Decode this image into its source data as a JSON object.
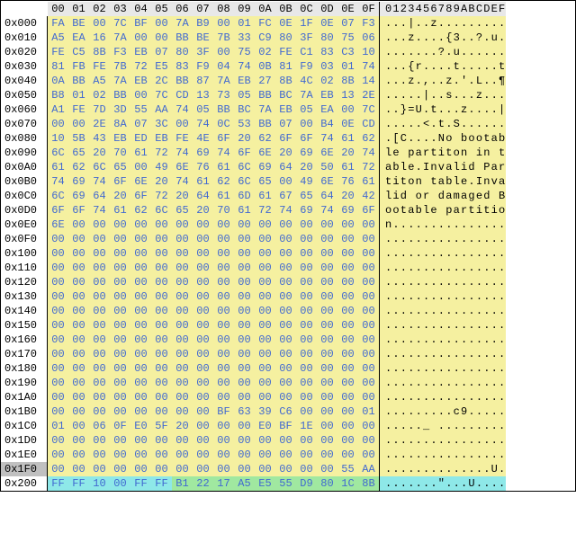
{
  "colors": {
    "hexText": "#4169d1",
    "bgYellow": "#f5f0a0",
    "bgGreen": "#a0e8a0",
    "bgCyan": "#8ee8e8",
    "border": "#000000",
    "selectedOffset": "#c0c0c0",
    "headerBg": "#e8e8e8"
  },
  "selectedRow": 31,
  "header": {
    "offsetBlank": "",
    "cols": [
      "00",
      "01",
      "02",
      "03",
      "04",
      "05",
      "06",
      "07",
      "08",
      "09",
      "0A",
      "0B",
      "0C",
      "0D",
      "0E",
      "0F"
    ],
    "asciiHdr": "0123456789ABCDEF"
  },
  "rows": [
    {
      "off": "0x000",
      "hex": [
        "FA",
        "BE",
        "00",
        "7C",
        "BF",
        "00",
        "7A",
        "B9",
        "00",
        "01",
        "FC",
        "0E",
        "1F",
        "0E",
        "07",
        "F3"
      ],
      "ascii": "...|..z.........",
      "seg": [
        "y",
        "y",
        "y",
        "y",
        "y",
        "y",
        "y",
        "y",
        "y",
        "y",
        "y",
        "y",
        "y",
        "y",
        "y",
        "y"
      ],
      "aseg": "y"
    },
    {
      "off": "0x010",
      "hex": [
        "A5",
        "EA",
        "16",
        "7A",
        "00",
        "00",
        "BB",
        "BE",
        "7B",
        "33",
        "C9",
        "80",
        "3F",
        "80",
        "75",
        "06"
      ],
      "ascii": "...z....{3..?.u.",
      "seg": [
        "y",
        "y",
        "y",
        "y",
        "y",
        "y",
        "y",
        "y",
        "y",
        "y",
        "y",
        "y",
        "y",
        "y",
        "y",
        "y"
      ],
      "aseg": "y"
    },
    {
      "off": "0x020",
      "hex": [
        "FE",
        "C5",
        "8B",
        "F3",
        "EB",
        "07",
        "80",
        "3F",
        "00",
        "75",
        "02",
        "FE",
        "C1",
        "83",
        "C3",
        "10"
      ],
      "ascii": ".......?.u......",
      "seg": [
        "y",
        "y",
        "y",
        "y",
        "y",
        "y",
        "y",
        "y",
        "y",
        "y",
        "y",
        "y",
        "y",
        "y",
        "y",
        "y"
      ],
      "aseg": "y"
    },
    {
      "off": "0x030",
      "hex": [
        "81",
        "FB",
        "FE",
        "7B",
        "72",
        "E5",
        "83",
        "F9",
        "04",
        "74",
        "0B",
        "81",
        "F9",
        "03",
        "01",
        "74"
      ],
      "ascii": "...{r....t.....t",
      "seg": [
        "y",
        "y",
        "y",
        "y",
        "y",
        "y",
        "y",
        "y",
        "y",
        "y",
        "y",
        "y",
        "y",
        "y",
        "y",
        "y"
      ],
      "aseg": "y"
    },
    {
      "off": "0x040",
      "hex": [
        "0A",
        "BB",
        "A5",
        "7A",
        "EB",
        "2C",
        "BB",
        "87",
        "7A",
        "EB",
        "27",
        "8B",
        "4C",
        "02",
        "8B",
        "14"
      ],
      "ascii": "...z.,..z.'.L..¶",
      "seg": [
        "y",
        "y",
        "y",
        "y",
        "y",
        "y",
        "y",
        "y",
        "y",
        "y",
        "y",
        "y",
        "y",
        "y",
        "y",
        "y"
      ],
      "aseg": "y"
    },
    {
      "off": "0x050",
      "hex": [
        "B8",
        "01",
        "02",
        "BB",
        "00",
        "7C",
        "CD",
        "13",
        "73",
        "05",
        "BB",
        "BC",
        "7A",
        "EB",
        "13",
        "2E"
      ],
      "ascii": ".....|..s...z...",
      "seg": [
        "y",
        "y",
        "y",
        "y",
        "y",
        "y",
        "y",
        "y",
        "y",
        "y",
        "y",
        "y",
        "y",
        "y",
        "y",
        "y"
      ],
      "aseg": "y"
    },
    {
      "off": "0x060",
      "hex": [
        "A1",
        "FE",
        "7D",
        "3D",
        "55",
        "AA",
        "74",
        "05",
        "BB",
        "BC",
        "7A",
        "EB",
        "05",
        "EA",
        "00",
        "7C"
      ],
      "ascii": "..}=U.t...z....|",
      "seg": [
        "y",
        "y",
        "y",
        "y",
        "y",
        "y",
        "y",
        "y",
        "y",
        "y",
        "y",
        "y",
        "y",
        "y",
        "y",
        "y"
      ],
      "aseg": "y"
    },
    {
      "off": "0x070",
      "hex": [
        "00",
        "00",
        "2E",
        "8A",
        "07",
        "3C",
        "00",
        "74",
        "0C",
        "53",
        "BB",
        "07",
        "00",
        "B4",
        "0E",
        "CD"
      ],
      "ascii": ".....<.t.S......",
      "seg": [
        "y",
        "y",
        "y",
        "y",
        "y",
        "y",
        "y",
        "y",
        "y",
        "y",
        "y",
        "y",
        "y",
        "y",
        "y",
        "y"
      ],
      "aseg": "y"
    },
    {
      "off": "0x080",
      "hex": [
        "10",
        "5B",
        "43",
        "EB",
        "ED",
        "EB",
        "FE",
        "4E",
        "6F",
        "20",
        "62",
        "6F",
        "6F",
        "74",
        "61",
        "62"
      ],
      "ascii": ".[C....No bootab",
      "seg": [
        "y",
        "y",
        "y",
        "y",
        "y",
        "y",
        "y",
        "y",
        "y",
        "y",
        "y",
        "y",
        "y",
        "y",
        "y",
        "y"
      ],
      "aseg": "y"
    },
    {
      "off": "0x090",
      "hex": [
        "6C",
        "65",
        "20",
        "70",
        "61",
        "72",
        "74",
        "69",
        "74",
        "6F",
        "6E",
        "20",
        "69",
        "6E",
        "20",
        "74"
      ],
      "ascii": "le partiton in t",
      "seg": [
        "y",
        "y",
        "y",
        "y",
        "y",
        "y",
        "y",
        "y",
        "y",
        "y",
        "y",
        "y",
        "y",
        "y",
        "y",
        "y"
      ],
      "aseg": "y"
    },
    {
      "off": "0x0A0",
      "hex": [
        "61",
        "62",
        "6C",
        "65",
        "00",
        "49",
        "6E",
        "76",
        "61",
        "6C",
        "69",
        "64",
        "20",
        "50",
        "61",
        "72"
      ],
      "ascii": "able.Invalid Par",
      "seg": [
        "y",
        "y",
        "y",
        "y",
        "y",
        "y",
        "y",
        "y",
        "y",
        "y",
        "y",
        "y",
        "y",
        "y",
        "y",
        "y"
      ],
      "aseg": "y"
    },
    {
      "off": "0x0B0",
      "hex": [
        "74",
        "69",
        "74",
        "6F",
        "6E",
        "20",
        "74",
        "61",
        "62",
        "6C",
        "65",
        "00",
        "49",
        "6E",
        "76",
        "61"
      ],
      "ascii": "titon table.Inva",
      "seg": [
        "y",
        "y",
        "y",
        "y",
        "y",
        "y",
        "y",
        "y",
        "y",
        "y",
        "y",
        "y",
        "y",
        "y",
        "y",
        "y"
      ],
      "aseg": "y"
    },
    {
      "off": "0x0C0",
      "hex": [
        "6C",
        "69",
        "64",
        "20",
        "6F",
        "72",
        "20",
        "64",
        "61",
        "6D",
        "61",
        "67",
        "65",
        "64",
        "20",
        "42"
      ],
      "ascii": "lid or damaged B",
      "seg": [
        "y",
        "y",
        "y",
        "y",
        "y",
        "y",
        "y",
        "y",
        "y",
        "y",
        "y",
        "y",
        "y",
        "y",
        "y",
        "y"
      ],
      "aseg": "y"
    },
    {
      "off": "0x0D0",
      "hex": [
        "6F",
        "6F",
        "74",
        "61",
        "62",
        "6C",
        "65",
        "20",
        "70",
        "61",
        "72",
        "74",
        "69",
        "74",
        "69",
        "6F"
      ],
      "ascii": "ootable partitio",
      "seg": [
        "y",
        "y",
        "y",
        "y",
        "y",
        "y",
        "y",
        "y",
        "y",
        "y",
        "y",
        "y",
        "y",
        "y",
        "y",
        "y"
      ],
      "aseg": "y"
    },
    {
      "off": "0x0E0",
      "hex": [
        "6E",
        "00",
        "00",
        "00",
        "00",
        "00",
        "00",
        "00",
        "00",
        "00",
        "00",
        "00",
        "00",
        "00",
        "00",
        "00"
      ],
      "ascii": "n...............",
      "seg": [
        "y",
        "y",
        "y",
        "y",
        "y",
        "y",
        "y",
        "y",
        "y",
        "y",
        "y",
        "y",
        "y",
        "y",
        "y",
        "y"
      ],
      "aseg": "y"
    },
    {
      "off": "0x0F0",
      "hex": [
        "00",
        "00",
        "00",
        "00",
        "00",
        "00",
        "00",
        "00",
        "00",
        "00",
        "00",
        "00",
        "00",
        "00",
        "00",
        "00"
      ],
      "ascii": "................",
      "seg": [
        "y",
        "y",
        "y",
        "y",
        "y",
        "y",
        "y",
        "y",
        "y",
        "y",
        "y",
        "y",
        "y",
        "y",
        "y",
        "y"
      ],
      "aseg": "y"
    },
    {
      "off": "0x100",
      "hex": [
        "00",
        "00",
        "00",
        "00",
        "00",
        "00",
        "00",
        "00",
        "00",
        "00",
        "00",
        "00",
        "00",
        "00",
        "00",
        "00"
      ],
      "ascii": "................",
      "seg": [
        "y",
        "y",
        "y",
        "y",
        "y",
        "y",
        "y",
        "y",
        "y",
        "y",
        "y",
        "y",
        "y",
        "y",
        "y",
        "y"
      ],
      "aseg": "y"
    },
    {
      "off": "0x110",
      "hex": [
        "00",
        "00",
        "00",
        "00",
        "00",
        "00",
        "00",
        "00",
        "00",
        "00",
        "00",
        "00",
        "00",
        "00",
        "00",
        "00"
      ],
      "ascii": "................",
      "seg": [
        "y",
        "y",
        "y",
        "y",
        "y",
        "y",
        "y",
        "y",
        "y",
        "y",
        "y",
        "y",
        "y",
        "y",
        "y",
        "y"
      ],
      "aseg": "y"
    },
    {
      "off": "0x120",
      "hex": [
        "00",
        "00",
        "00",
        "00",
        "00",
        "00",
        "00",
        "00",
        "00",
        "00",
        "00",
        "00",
        "00",
        "00",
        "00",
        "00"
      ],
      "ascii": "................",
      "seg": [
        "y",
        "y",
        "y",
        "y",
        "y",
        "y",
        "y",
        "y",
        "y",
        "y",
        "y",
        "y",
        "y",
        "y",
        "y",
        "y"
      ],
      "aseg": "y"
    },
    {
      "off": "0x130",
      "hex": [
        "00",
        "00",
        "00",
        "00",
        "00",
        "00",
        "00",
        "00",
        "00",
        "00",
        "00",
        "00",
        "00",
        "00",
        "00",
        "00"
      ],
      "ascii": "................",
      "seg": [
        "y",
        "y",
        "y",
        "y",
        "y",
        "y",
        "y",
        "y",
        "y",
        "y",
        "y",
        "y",
        "y",
        "y",
        "y",
        "y"
      ],
      "aseg": "y"
    },
    {
      "off": "0x140",
      "hex": [
        "00",
        "00",
        "00",
        "00",
        "00",
        "00",
        "00",
        "00",
        "00",
        "00",
        "00",
        "00",
        "00",
        "00",
        "00",
        "00"
      ],
      "ascii": "................",
      "seg": [
        "y",
        "y",
        "y",
        "y",
        "y",
        "y",
        "y",
        "y",
        "y",
        "y",
        "y",
        "y",
        "y",
        "y",
        "y",
        "y"
      ],
      "aseg": "y"
    },
    {
      "off": "0x150",
      "hex": [
        "00",
        "00",
        "00",
        "00",
        "00",
        "00",
        "00",
        "00",
        "00",
        "00",
        "00",
        "00",
        "00",
        "00",
        "00",
        "00"
      ],
      "ascii": "................",
      "seg": [
        "y",
        "y",
        "y",
        "y",
        "y",
        "y",
        "y",
        "y",
        "y",
        "y",
        "y",
        "y",
        "y",
        "y",
        "y",
        "y"
      ],
      "aseg": "y"
    },
    {
      "off": "0x160",
      "hex": [
        "00",
        "00",
        "00",
        "00",
        "00",
        "00",
        "00",
        "00",
        "00",
        "00",
        "00",
        "00",
        "00",
        "00",
        "00",
        "00"
      ],
      "ascii": "................",
      "seg": [
        "y",
        "y",
        "y",
        "y",
        "y",
        "y",
        "y",
        "y",
        "y",
        "y",
        "y",
        "y",
        "y",
        "y",
        "y",
        "y"
      ],
      "aseg": "y"
    },
    {
      "off": "0x170",
      "hex": [
        "00",
        "00",
        "00",
        "00",
        "00",
        "00",
        "00",
        "00",
        "00",
        "00",
        "00",
        "00",
        "00",
        "00",
        "00",
        "00"
      ],
      "ascii": "................",
      "seg": [
        "y",
        "y",
        "y",
        "y",
        "y",
        "y",
        "y",
        "y",
        "y",
        "y",
        "y",
        "y",
        "y",
        "y",
        "y",
        "y"
      ],
      "aseg": "y"
    },
    {
      "off": "0x180",
      "hex": [
        "00",
        "00",
        "00",
        "00",
        "00",
        "00",
        "00",
        "00",
        "00",
        "00",
        "00",
        "00",
        "00",
        "00",
        "00",
        "00"
      ],
      "ascii": "................",
      "seg": [
        "y",
        "y",
        "y",
        "y",
        "y",
        "y",
        "y",
        "y",
        "y",
        "y",
        "y",
        "y",
        "y",
        "y",
        "y",
        "y"
      ],
      "aseg": "y"
    },
    {
      "off": "0x190",
      "hex": [
        "00",
        "00",
        "00",
        "00",
        "00",
        "00",
        "00",
        "00",
        "00",
        "00",
        "00",
        "00",
        "00",
        "00",
        "00",
        "00"
      ],
      "ascii": "................",
      "seg": [
        "y",
        "y",
        "y",
        "y",
        "y",
        "y",
        "y",
        "y",
        "y",
        "y",
        "y",
        "y",
        "y",
        "y",
        "y",
        "y"
      ],
      "aseg": "y"
    },
    {
      "off": "0x1A0",
      "hex": [
        "00",
        "00",
        "00",
        "00",
        "00",
        "00",
        "00",
        "00",
        "00",
        "00",
        "00",
        "00",
        "00",
        "00",
        "00",
        "00"
      ],
      "ascii": "................",
      "seg": [
        "y",
        "y",
        "y",
        "y",
        "y",
        "y",
        "y",
        "y",
        "y",
        "y",
        "y",
        "y",
        "y",
        "y",
        "y",
        "y"
      ],
      "aseg": "y"
    },
    {
      "off": "0x1B0",
      "hex": [
        "00",
        "00",
        "00",
        "00",
        "00",
        "00",
        "00",
        "00",
        "BF",
        "63",
        "39",
        "C6",
        "00",
        "00",
        "00",
        "01"
      ],
      "ascii": ".........c9.....",
      "seg": [
        "y",
        "y",
        "y",
        "y",
        "y",
        "y",
        "y",
        "y",
        "y",
        "y",
        "y",
        "y",
        "y",
        "y",
        "y",
        "y"
      ],
      "aseg": "y"
    },
    {
      "off": "0x1C0",
      "hex": [
        "01",
        "00",
        "06",
        "0F",
        "E0",
        "5F",
        "20",
        "00",
        "00",
        "00",
        "E0",
        "BF",
        "1E",
        "00",
        "00",
        "00"
      ],
      "ascii": "....._ .........",
      "seg": [
        "y",
        "y",
        "y",
        "y",
        "y",
        "y",
        "y",
        "y",
        "y",
        "y",
        "y",
        "y",
        "y",
        "y",
        "y",
        "y"
      ],
      "aseg": "y"
    },
    {
      "off": "0x1D0",
      "hex": [
        "00",
        "00",
        "00",
        "00",
        "00",
        "00",
        "00",
        "00",
        "00",
        "00",
        "00",
        "00",
        "00",
        "00",
        "00",
        "00"
      ],
      "ascii": "................",
      "seg": [
        "y",
        "y",
        "y",
        "y",
        "y",
        "y",
        "y",
        "y",
        "y",
        "y",
        "y",
        "y",
        "y",
        "y",
        "y",
        "y"
      ],
      "aseg": "y"
    },
    {
      "off": "0x1E0",
      "hex": [
        "00",
        "00",
        "00",
        "00",
        "00",
        "00",
        "00",
        "00",
        "00",
        "00",
        "00",
        "00",
        "00",
        "00",
        "00",
        "00"
      ],
      "ascii": "................",
      "seg": [
        "y",
        "y",
        "y",
        "y",
        "y",
        "y",
        "y",
        "y",
        "y",
        "y",
        "y",
        "y",
        "y",
        "y",
        "y",
        "y"
      ],
      "aseg": "y"
    },
    {
      "off": "0x1F0",
      "hex": [
        "00",
        "00",
        "00",
        "00",
        "00",
        "00",
        "00",
        "00",
        "00",
        "00",
        "00",
        "00",
        "00",
        "00",
        "55",
        "AA"
      ],
      "ascii": "..............U.",
      "seg": [
        "y",
        "y",
        "y",
        "y",
        "y",
        "y",
        "y",
        "y",
        "y",
        "y",
        "y",
        "y",
        "y",
        "y",
        "y",
        "y"
      ],
      "aseg": "y"
    },
    {
      "off": "0x200",
      "hex": [
        "FF",
        "FF",
        "10",
        "00",
        "FF",
        "FF",
        "B1",
        "22",
        "17",
        "A5",
        "E5",
        "55",
        "D9",
        "80",
        "1C",
        "8B"
      ],
      "ascii": ".......\"...U....",
      "seg": [
        "c",
        "c",
        "c",
        "c",
        "c",
        "c",
        "g",
        "g",
        "g",
        "g",
        "g",
        "g",
        "g",
        "g",
        "g",
        "g"
      ],
      "aseg": "c"
    }
  ]
}
